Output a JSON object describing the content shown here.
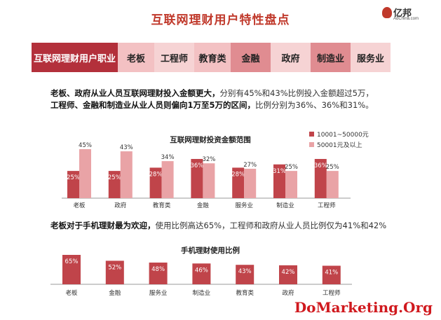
{
  "title": "互联网理财用户特性盘点",
  "logo": {
    "text": "亿邦",
    "sub": "AdChina.com"
  },
  "tabs": [
    {
      "label": "互联网理财用户职业"
    },
    {
      "label": "老板"
    },
    {
      "label": "工程师"
    },
    {
      "label": "教育类"
    },
    {
      "label": "金融"
    },
    {
      "label": "政府"
    },
    {
      "label": "制造业"
    },
    {
      "label": "服务业"
    }
  ],
  "para1": {
    "bold": "老板、政府从业人员互联网理财投入金额更大，",
    "rest": "分别有45%和43%比例投入金额超过5万，",
    "bold2": "工程师、金融和制造业从业人员则偏向1万至5万的区间，",
    "rest2": "比例分别为36%、36%和31%。"
  },
  "para2": {
    "bold": "老板对于手机理财最为欢迎，",
    "rest": "使用比例高达65%，工程师和政府从业人员比例仅为41%和42%"
  },
  "watermark": "DoMarketing.Org",
  "colors": {
    "dark": "#c0444a",
    "light": "#e9a3a6",
    "accent": "#c0392b"
  },
  "chart_data": [
    {
      "type": "bar",
      "title": "互联网理财投资金额范围",
      "categories": [
        "老板",
        "政府",
        "教育类",
        "金融",
        "服务业",
        "制造业",
        "工程师"
      ],
      "series": [
        {
          "name": "10001~50000元",
          "values": [
            25,
            25,
            28,
            36,
            28,
            31,
            36
          ],
          "labels": [
            "25%",
            "25%",
            "28%",
            "36%",
            "28%",
            "31%",
            "36%"
          ]
        },
        {
          "name": "50001元及以上",
          "values": [
            45,
            43,
            34,
            32,
            27,
            25,
            25
          ],
          "labels": [
            "45%",
            "43%",
            "34%",
            "32%",
            "27%",
            "25%",
            "25%"
          ]
        }
      ],
      "ylim": [
        0,
        50
      ]
    },
    {
      "type": "bar",
      "title": "手机理财使用比例",
      "categories": [
        "老板",
        "金融",
        "服务业",
        "制造业",
        "教育类",
        "政府",
        "工程师"
      ],
      "values": [
        65,
        52,
        48,
        46,
        43,
        42,
        41
      ],
      "labels": [
        "65%",
        "52%",
        "48%",
        "46%",
        "43%",
        "42%",
        "41%"
      ],
      "ylim": [
        0,
        70
      ]
    }
  ]
}
